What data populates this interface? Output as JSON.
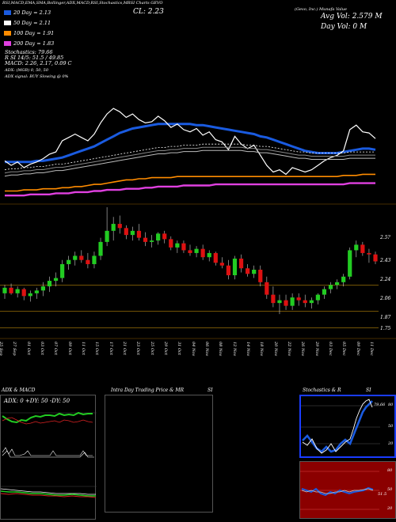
{
  "header": {
    "top_line": "RSI,MACD,EMA,SMA,Bollinger,ADX,MACD,RSI,Stochastics,MRSI Charts GEVO",
    "close_label": "CL: 2.23",
    "company": "(Gevo, Inc.) Munafa Value",
    "avg_vol": "Avg Vol: 2.579 M",
    "day_vol": "Day Vol: 0 M"
  },
  "legend": [
    {
      "label": "20 Day = 2.13",
      "color": "#1a5be0"
    },
    {
      "label": "50 Day = 2.11",
      "color": "#ffffff"
    },
    {
      "label": "100 Day = 1.91",
      "color": "#ff8c00"
    },
    {
      "label": "200 Day = 1.83",
      "color": "#e040e0"
    }
  ],
  "stats": [
    "Stochastics: 79.66",
    "R                SI 14/5: 51.5 / 49.85",
    "MACD: 2.26, 2.17, 0.09 C",
    "ADX:                              (MGB) 0, 50, 50",
    "ADX  signal:                              BUY Slowing @ 0%"
  ],
  "price_axis": [
    "2.43",
    "2.24",
    "2.06",
    "1.87",
    "1.75"
  ],
  "price_axis_top": "2.5?",
  "dates": [
    "25 Sep",
    "27 Sep",
    "01 Oct",
    "03 Oct",
    "07 Oct",
    "09 Oct",
    "11 Oct",
    "15 Oct",
    "17 Oct",
    "21 Oct",
    "23 Oct",
    "25 Oct",
    "29 Oct",
    "31 Oct",
    "04 Nov",
    "06 Nov",
    "08 Nov",
    "12 Nov",
    "14 Nov",
    "18 Nov",
    "20 Nov",
    "22 Nov",
    "26 Nov",
    "29 Nov",
    "03 Dec",
    "05 Dec",
    "09 Dec",
    "11 Dec"
  ],
  "panels": {
    "adx_title": "ADX  & MACD",
    "adx_values": "ADX: 0  +DY: 50  -DY: 50",
    "intra_title": "Intra  Day Trading Price  & MR",
    "intra_si": "SI",
    "stoch_title": "Stochastics & R",
    "stoch_si": "SI",
    "stoch_value": "79.66",
    "stoch_ticks": [
      "80",
      "50",
      "20"
    ],
    "mrsi_ticks": [
      "80",
      "50",
      "20"
    ],
    "mrsi_value": "51.5"
  },
  "colors": {
    "up": "#22cc22",
    "down": "#dd1111",
    "sma20": "#1a5be0",
    "sma100": "#ff8c00",
    "sma200": "#e040e0",
    "mrsi_bg": "#8b0000",
    "stoch_border": "#1a3cff"
  },
  "chart_data": {
    "type": "candlestick",
    "title": "GEVO",
    "series": [
      {
        "name": "candles",
        "ohlc": [
          [
            2.0,
            2.06,
            1.96,
            2.04
          ],
          [
            2.04,
            2.07,
            1.99,
            2.0
          ],
          [
            2.0,
            2.05,
            1.97,
            2.03
          ],
          [
            2.03,
            2.04,
            1.95,
            1.98
          ],
          [
            1.98,
            2.02,
            1.94,
            2.0
          ],
          [
            2.0,
            2.04,
            1.96,
            2.02
          ],
          [
            2.02,
            2.08,
            1.98,
            2.05
          ],
          [
            2.05,
            2.12,
            2.01,
            2.09
          ],
          [
            2.09,
            2.15,
            2.05,
            2.11
          ],
          [
            2.11,
            2.24,
            2.08,
            2.21
          ],
          [
            2.21,
            2.27,
            2.17,
            2.24
          ],
          [
            2.24,
            2.3,
            2.2,
            2.27
          ],
          [
            2.27,
            2.31,
            2.22,
            2.24
          ],
          [
            2.24,
            2.29,
            2.18,
            2.21
          ],
          [
            2.21,
            2.3,
            2.18,
            2.27
          ],
          [
            2.27,
            2.4,
            2.24,
            2.37
          ],
          [
            2.37,
            2.62,
            2.34,
            2.45
          ],
          [
            2.45,
            2.55,
            2.38,
            2.5
          ],
          [
            2.5,
            2.56,
            2.43,
            2.47
          ],
          [
            2.47,
            2.49,
            2.39,
            2.42
          ],
          [
            2.42,
            2.48,
            2.38,
            2.45
          ],
          [
            2.45,
            2.5,
            2.38,
            2.4
          ],
          [
            2.4,
            2.44,
            2.34,
            2.37
          ],
          [
            2.37,
            2.42,
            2.33,
            2.38
          ],
          [
            2.38,
            2.44,
            2.35,
            2.43
          ],
          [
            2.43,
            2.45,
            2.36,
            2.39
          ],
          [
            2.39,
            2.41,
            2.31,
            2.33
          ],
          [
            2.33,
            2.38,
            2.29,
            2.36
          ],
          [
            2.36,
            2.38,
            2.29,
            2.31
          ],
          [
            2.31,
            2.35,
            2.27,
            2.29
          ],
          [
            2.29,
            2.34,
            2.26,
            2.32
          ],
          [
            2.32,
            2.35,
            2.24,
            2.26
          ],
          [
            2.26,
            2.31,
            2.23,
            2.29
          ],
          [
            2.29,
            2.3,
            2.2,
            2.22
          ],
          [
            2.22,
            2.26,
            2.18,
            2.2
          ],
          [
            2.2,
            2.24,
            2.1,
            2.13
          ],
          [
            2.13,
            2.27,
            2.1,
            2.25
          ],
          [
            2.25,
            2.28,
            2.15,
            2.18
          ],
          [
            2.18,
            2.21,
            2.12,
            2.14
          ],
          [
            2.14,
            2.2,
            2.11,
            2.17
          ],
          [
            2.17,
            2.2,
            2.05,
            2.08
          ],
          [
            2.08,
            2.12,
            1.96,
            1.99
          ],
          [
            1.99,
            2.05,
            1.9,
            1.93
          ],
          [
            1.93,
            1.99,
            1.85,
            1.95
          ],
          [
            1.95,
            1.99,
            1.88,
            1.91
          ],
          [
            1.91,
            2.0,
            1.88,
            1.97
          ],
          [
            1.97,
            2.0,
            1.91,
            1.95
          ],
          [
            1.95,
            1.99,
            1.9,
            1.93
          ],
          [
            1.93,
            1.97,
            1.89,
            1.95
          ],
          [
            1.95,
            2.0,
            1.92,
            1.99
          ],
          [
            1.99,
            2.05,
            1.96,
            2.03
          ],
          [
            2.03,
            2.08,
            2.0,
            2.06
          ],
          [
            2.06,
            2.1,
            2.03,
            2.08
          ],
          [
            2.08,
            2.14,
            2.05,
            2.12
          ],
          [
            2.12,
            2.33,
            2.1,
            2.31
          ],
          [
            2.31,
            2.38,
            2.26,
            2.35
          ],
          [
            2.35,
            2.37,
            2.27,
            2.29
          ],
          [
            2.29,
            2.32,
            2.22,
            2.28
          ],
          [
            2.28,
            2.3,
            2.21,
            2.23
          ]
        ]
      },
      {
        "name": "20 Day",
        "values": [
          2.02,
          2.02,
          2.02,
          2.02,
          2.02,
          2.03,
          2.03,
          2.04,
          2.05,
          2.06,
          2.08,
          2.1,
          2.12,
          2.14,
          2.16,
          2.19,
          2.22,
          2.25,
          2.28,
          2.3,
          2.32,
          2.33,
          2.34,
          2.35,
          2.36,
          2.36,
          2.36,
          2.36,
          2.36,
          2.36,
          2.35,
          2.35,
          2.34,
          2.33,
          2.32,
          2.31,
          2.3,
          2.29,
          2.28,
          2.27,
          2.25,
          2.24,
          2.22,
          2.2,
          2.18,
          2.16,
          2.14,
          2.12,
          2.11,
          2.1,
          2.1,
          2.1,
          2.1,
          2.11,
          2.12,
          2.13,
          2.14,
          2.14,
          2.13
        ]
      },
      {
        "name": "50 Day",
        "values": [
          1.95,
          1.96,
          1.96,
          1.97,
          1.97,
          1.98,
          1.98,
          1.99,
          2.0,
          2.0,
          2.01,
          2.02,
          2.03,
          2.04,
          2.05,
          2.06,
          2.07,
          2.08,
          2.09,
          2.1,
          2.11,
          2.12,
          2.13,
          2.14,
          2.15,
          2.15,
          2.16,
          2.16,
          2.17,
          2.17,
          2.17,
          2.18,
          2.18,
          2.18,
          2.18,
          2.18,
          2.18,
          2.18,
          2.17,
          2.17,
          2.16,
          2.16,
          2.15,
          2.14,
          2.13,
          2.12,
          2.11,
          2.11,
          2.1,
          2.1,
          2.1,
          2.1,
          2.1,
          2.1,
          2.11,
          2.11,
          2.11,
          2.11,
          2.11
        ]
      },
      {
        "name": "100 Day",
        "values": [
          1.76,
          1.76,
          1.76,
          1.77,
          1.77,
          1.77,
          1.78,
          1.78,
          1.78,
          1.79,
          1.79,
          1.8,
          1.8,
          1.81,
          1.82,
          1.82,
          1.83,
          1.84,
          1.85,
          1.86,
          1.86,
          1.87,
          1.87,
          1.88,
          1.88,
          1.88,
          1.88,
          1.89,
          1.89,
          1.89,
          1.89,
          1.89,
          1.89,
          1.89,
          1.89,
          1.89,
          1.89,
          1.89,
          1.89,
          1.89,
          1.89,
          1.89,
          1.89,
          1.89,
          1.89,
          1.89,
          1.89,
          1.89,
          1.89,
          1.89,
          1.89,
          1.89,
          1.89,
          1.9,
          1.9,
          1.9,
          1.91,
          1.91,
          1.91
        ]
      },
      {
        "name": "200 Day",
        "values": [
          1.72,
          1.72,
          1.72,
          1.72,
          1.73,
          1.73,
          1.73,
          1.73,
          1.74,
          1.74,
          1.74,
          1.75,
          1.75,
          1.75,
          1.76,
          1.76,
          1.77,
          1.77,
          1.77,
          1.78,
          1.78,
          1.78,
          1.79,
          1.79,
          1.8,
          1.8,
          1.8,
          1.8,
          1.81,
          1.81,
          1.81,
          1.81,
          1.81,
          1.82,
          1.82,
          1.82,
          1.82,
          1.82,
          1.82,
          1.82,
          1.82,
          1.82,
          1.82,
          1.82,
          1.82,
          1.82,
          1.82,
          1.82,
          1.82,
          1.82,
          1.82,
          1.82,
          1.82,
          1.82,
          1.83,
          1.83,
          1.83,
          1.83,
          1.83
        ]
      },
      {
        "name": "price line",
        "values": [
          2.03,
          1.99,
          2.02,
          1.97,
          2.0,
          2.02,
          2.05,
          2.09,
          2.11,
          2.21,
          2.24,
          2.27,
          2.24,
          2.21,
          2.27,
          2.37,
          2.45,
          2.5,
          2.47,
          2.42,
          2.45,
          2.4,
          2.37,
          2.38,
          2.43,
          2.39,
          2.33,
          2.36,
          2.31,
          2.29,
          2.32,
          2.26,
          2.29,
          2.22,
          2.2,
          2.13,
          2.25,
          2.18,
          2.14,
          2.17,
          2.08,
          1.99,
          1.93,
          1.95,
          1.91,
          1.97,
          1.95,
          1.93,
          1.95,
          1.99,
          2.03,
          2.06,
          2.08,
          2.12,
          2.31,
          2.35,
          2.29,
          2.28,
          2.23
        ]
      }
    ],
    "ylim": [
      1.72,
      2.62
    ]
  }
}
